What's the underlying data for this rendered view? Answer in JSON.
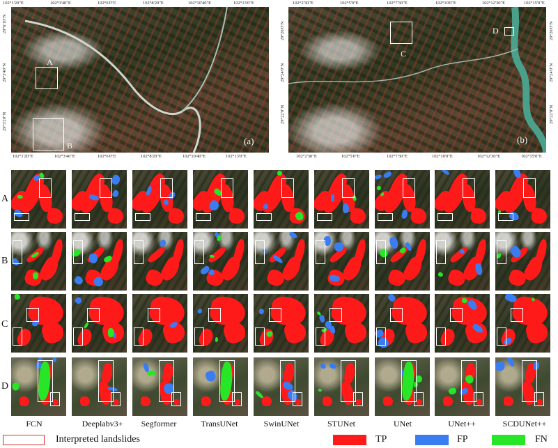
{
  "overview_a": {
    "label": "(a)",
    "top_ticks": [
      "102°1'20\"E",
      "102°3'40\"E",
      "102°6'0\"E",
      "102°8'20\"E",
      "102°10'40\"E",
      "102°13'0\"E"
    ],
    "bottom_ticks": [
      "102°1'20\"E",
      "102°3'40\"E",
      "102°6'0\"E",
      "102°8'20\"E",
      "102°10'40\"E",
      "102°13'0\"E"
    ],
    "left_ticks": [
      "29°6'10\"N",
      "29°3'40\"N",
      "29°3'20\"N"
    ],
    "boxes": [
      "A",
      "B"
    ]
  },
  "overview_b": {
    "label": "(b)",
    "top_ticks": [
      "102°2'30\"E",
      "102°5'0\"E",
      "102°7'30\"E",
      "102°10'0\"E",
      "102°12'30\"E",
      "102°15'0\"E"
    ],
    "bottom_ticks": [
      "102°2'30\"E",
      "102°5'0\"E",
      "102°7'30\"E",
      "102°10'0\"E",
      "102°12'30\"E",
      "102°15'0\"E"
    ],
    "left_ticks": [
      "29°26'0\"N",
      "29°24'0\"N",
      "29°22'0\"N"
    ],
    "right_ticks": [
      "29°26'0\"N",
      "29°24'0\"N",
      "29°22'0\"N"
    ],
    "boxes": [
      "C",
      "D"
    ]
  },
  "rows": [
    "A",
    "B",
    "C",
    "D"
  ],
  "methods": [
    "FCN",
    "Deeplabv3+",
    "Segformer",
    "TransUNet",
    "SwinUNet",
    "STUNet",
    "UNet",
    "UNet++",
    "SCDUNet++"
  ],
  "legend": {
    "interpreted": "Interpreted landslides",
    "tp": "TP",
    "fp": "FP",
    "fn": "FN",
    "colors": {
      "tp": "#ff1a1a",
      "fp": "#3a7df0",
      "fn": "#27e627",
      "outline": "#d9302b"
    }
  }
}
